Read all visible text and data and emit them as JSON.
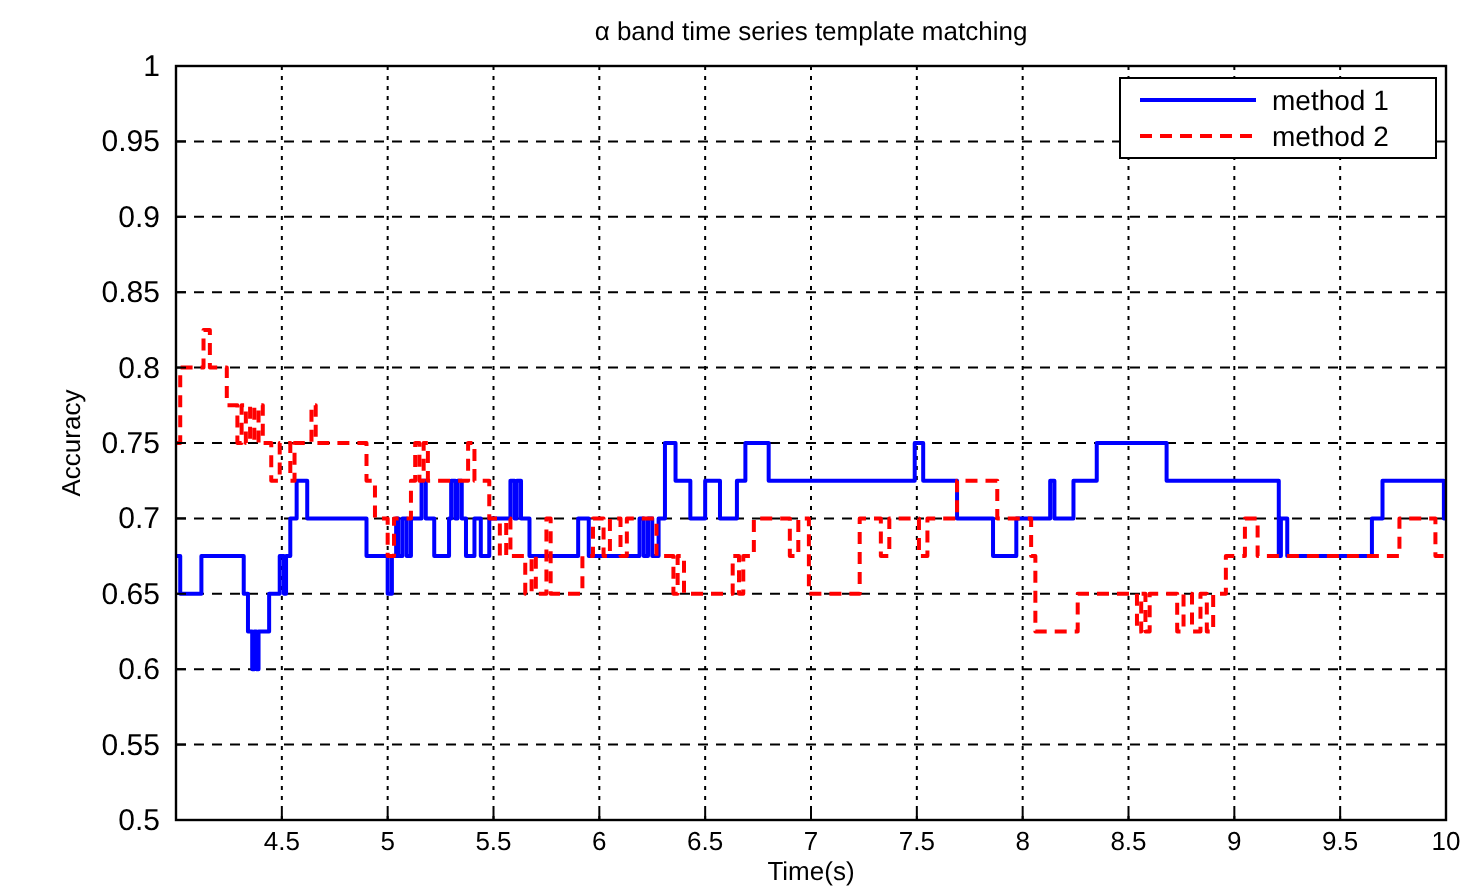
{
  "chart_data": {
    "type": "step",
    "title": "α band time series template matching",
    "xlabel": "Time(s)",
    "ylabel": "Accuracy",
    "xlim": [
      4,
      10
    ],
    "xticks": [
      4.5,
      5,
      5.5,
      6,
      6.5,
      7,
      7.5,
      8,
      8.5,
      9,
      9.5,
      10
    ],
    "ylim": [
      0.5,
      1
    ],
    "yticks": [
      0.5,
      0.55,
      0.6,
      0.65,
      0.7,
      0.75,
      0.8,
      0.85,
      0.9,
      0.95,
      1
    ],
    "grid": true,
    "legend": "top right",
    "series": [
      {
        "name": "method 1",
        "color": "#0000ff",
        "line_style": "solid",
        "x": [
          4.0,
          4.02,
          4.12,
          4.32,
          4.34,
          4.36,
          4.37,
          4.38,
          4.39,
          4.44,
          4.49,
          4.51,
          4.52,
          4.54,
          4.57,
          4.62,
          4.9,
          5.0,
          5.02,
          5.04,
          5.05,
          5.07,
          5.09,
          5.11,
          5.16,
          5.18,
          5.22,
          5.29,
          5.3,
          5.32,
          5.33,
          5.35,
          5.37,
          5.41,
          5.44,
          5.48,
          5.58,
          5.6,
          5.61,
          5.63,
          5.67,
          5.9,
          5.95,
          6.19,
          6.21,
          6.23,
          6.25,
          6.28,
          6.31,
          6.36,
          6.43,
          6.5,
          6.57,
          6.65,
          6.69,
          6.8,
          7.49,
          7.53,
          7.69,
          7.86,
          7.97,
          8.13,
          8.15,
          8.24,
          8.35,
          8.68,
          9.21,
          9.22,
          9.25,
          9.65,
          9.7,
          9.99,
          10
        ],
        "values": [
          0.675,
          0.65,
          0.675,
          0.65,
          0.625,
          0.6,
          0.625,
          0.6,
          0.625,
          0.65,
          0.675,
          0.65,
          0.675,
          0.7,
          0.725,
          0.7,
          0.675,
          0.65,
          0.675,
          0.7,
          0.675,
          0.7,
          0.675,
          0.7,
          0.725,
          0.7,
          0.675,
          0.7,
          0.725,
          0.7,
          0.725,
          0.7,
          0.675,
          0.7,
          0.675,
          0.7,
          0.725,
          0.7,
          0.725,
          0.7,
          0.675,
          0.7,
          0.675,
          0.7,
          0.675,
          0.7,
          0.675,
          0.7,
          0.75,
          0.725,
          0.7,
          0.725,
          0.7,
          0.725,
          0.75,
          0.725,
          0.75,
          0.725,
          0.7,
          0.675,
          0.7,
          0.725,
          0.7,
          0.725,
          0.75,
          0.725,
          0.675,
          0.7,
          0.675,
          0.7,
          0.725,
          0.7,
          0.7
        ]
      },
      {
        "name": "method 2",
        "color": "#ff0000",
        "line_style": "dashed",
        "x": [
          4.0,
          4.02,
          4.13,
          4.16,
          4.24,
          4.29,
          4.31,
          4.33,
          4.35,
          4.37,
          4.39,
          4.41,
          4.45,
          4.49,
          4.54,
          4.56,
          4.64,
          4.66,
          4.9,
          4.94,
          5.0,
          5.03,
          5.11,
          5.13,
          5.15,
          5.17,
          5.19,
          5.38,
          5.41,
          5.48,
          5.53,
          5.56,
          5.58,
          5.65,
          5.68,
          5.7,
          5.75,
          5.77,
          5.92,
          5.97,
          6.02,
          6.05,
          6.1,
          6.13,
          6.27,
          6.35,
          6.37,
          6.4,
          6.63,
          6.66,
          6.68,
          6.73,
          6.9,
          6.94,
          6.99,
          7.23,
          7.33,
          7.37,
          7.51,
          7.55,
          7.69,
          7.88,
          8.04,
          8.06,
          8.26,
          8.54,
          8.56,
          8.58,
          8.6,
          8.73,
          8.76,
          8.8,
          8.84,
          8.87,
          8.9,
          8.96,
          9.05,
          9.11,
          9.78,
          9.95,
          10
        ],
        "values": [
          0.75,
          0.8,
          0.825,
          0.8,
          0.775,
          0.75,
          0.775,
          0.75,
          0.775,
          0.75,
          0.775,
          0.75,
          0.725,
          0.75,
          0.725,
          0.75,
          0.775,
          0.75,
          0.725,
          0.7,
          0.675,
          0.7,
          0.725,
          0.75,
          0.725,
          0.75,
          0.725,
          0.75,
          0.725,
          0.7,
          0.675,
          0.7,
          0.675,
          0.65,
          0.675,
          0.65,
          0.7,
          0.65,
          0.675,
          0.7,
          0.675,
          0.7,
          0.675,
          0.7,
          0.675,
          0.65,
          0.675,
          0.65,
          0.675,
          0.65,
          0.675,
          0.7,
          0.675,
          0.7,
          0.65,
          0.7,
          0.675,
          0.7,
          0.675,
          0.7,
          0.725,
          0.7,
          0.675,
          0.625,
          0.65,
          0.625,
          0.65,
          0.625,
          0.65,
          0.625,
          0.65,
          0.625,
          0.65,
          0.625,
          0.65,
          0.675,
          0.7,
          0.675,
          0.7,
          0.675,
          0.675
        ]
      }
    ]
  }
}
